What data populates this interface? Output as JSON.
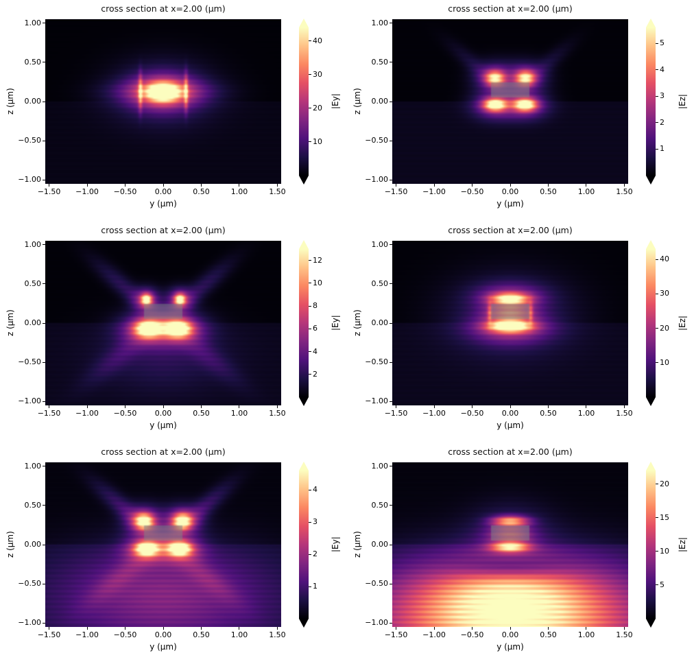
{
  "figure": {
    "background": "#ffffff",
    "colormap": "magma",
    "colormap_stops": [
      [
        0,
        0,
        4
      ],
      [
        28,
        16,
        68
      ],
      [
        79,
        18,
        123
      ],
      [
        129,
        37,
        129
      ],
      [
        181,
        54,
        122
      ],
      [
        229,
        80,
        100
      ],
      [
        251,
        135,
        97
      ],
      [
        254,
        194,
        135
      ],
      [
        252,
        253,
        191
      ]
    ],
    "waveguide_color": [
      125,
      128,
      134
    ],
    "text_color": "#000000"
  },
  "chart_data": [
    {
      "type": "heatmap",
      "title": "cross section at x=2.00 (μm)",
      "xlabel": "y (μm)",
      "ylabel": "z (μm)",
      "cbar_label": "|Ey|",
      "xlim": [
        -1.55,
        1.55
      ],
      "ylim": [
        -1.05,
        1.05
      ],
      "xticks": [
        -1.5,
        -1.0,
        -0.5,
        0.0,
        0.5,
        1.0,
        1.5
      ],
      "yticks": [
        1.0,
        0.5,
        0.0,
        -0.5,
        -1.0
      ],
      "cbar_ticks": [
        10,
        20,
        30,
        40
      ],
      "vmin": 0,
      "vmax": 44,
      "colormap": "magma",
      "base_above": 0.003,
      "base_below": 0.02,
      "fringe": {
        "period": 0.066,
        "depth": 0.16
      },
      "waveguide": {
        "show": false,
        "y": [
          -0.26,
          0.26
        ],
        "z": [
          0.05,
          0.25
        ]
      },
      "features": [
        {
          "y": 0.0,
          "z": 0.12,
          "sy": 0.14,
          "sz": 0.075,
          "a": 1.0
        },
        {
          "y": 0.0,
          "z": 0.12,
          "sy": 0.28,
          "sz": 0.15,
          "a": 0.5
        },
        {
          "y": 0.0,
          "z": 0.11,
          "sy": 0.45,
          "sz": 0.28,
          "a": 0.15
        },
        {
          "y": 0.0,
          "z": 0.12,
          "sy": 0.42,
          "sz": 0.1,
          "a": 0.25
        },
        {
          "y": -0.3,
          "z": 0.12,
          "sy": 0.018,
          "sz": 0.15,
          "a": 0.55
        },
        {
          "y": 0.3,
          "z": 0.12,
          "sy": 0.018,
          "sz": 0.15,
          "a": 0.55
        }
      ]
    },
    {
      "type": "heatmap",
      "title": "cross section at x=2.00 (μm)",
      "xlabel": "y (μm)",
      "ylabel": "z (μm)",
      "cbar_label": "|Ez|",
      "xlim": [
        -1.55,
        1.55
      ],
      "ylim": [
        -1.05,
        1.05
      ],
      "xticks": [
        -1.5,
        -1.0,
        -0.5,
        0.0,
        0.5,
        1.0,
        1.5
      ],
      "yticks": [
        1.0,
        0.5,
        0.0,
        -0.5,
        -1.0
      ],
      "cbar_ticks": [
        1,
        2,
        3,
        4,
        5
      ],
      "vmin": 0,
      "vmax": 5.6,
      "colormap": "magma",
      "base_above": 0.004,
      "base_below": 0.03,
      "fringe": {
        "period": 0.066,
        "depth": 0.16
      },
      "waveguide": {
        "show": true,
        "y": [
          -0.26,
          0.26
        ],
        "z": [
          0.05,
          0.25
        ]
      },
      "features": [
        {
          "y": -0.2,
          "z": 0.3,
          "sy": 0.085,
          "sz": 0.065,
          "a": 0.8
        },
        {
          "y": 0.2,
          "z": 0.3,
          "sy": 0.085,
          "sz": 0.065,
          "a": 0.8
        },
        {
          "y": -0.2,
          "z": 0.3,
          "sy": 0.18,
          "sz": 0.13,
          "a": 0.3
        },
        {
          "y": 0.2,
          "z": 0.3,
          "sy": 0.18,
          "sz": 0.13,
          "a": 0.3
        },
        {
          "y": -0.2,
          "z": -0.04,
          "sy": 0.1,
          "sz": 0.055,
          "a": 1.0
        },
        {
          "y": 0.2,
          "z": -0.04,
          "sy": 0.1,
          "sz": 0.055,
          "a": 1.0
        },
        {
          "y": -0.2,
          "z": -0.05,
          "sy": 0.2,
          "sz": 0.12,
          "a": 0.32
        },
        {
          "y": 0.2,
          "z": -0.05,
          "sy": 0.2,
          "sz": 0.12,
          "a": 0.32
        },
        {
          "y": -0.45,
          "z": 0.45,
          "sy": 0.3,
          "sz": 0.07,
          "rot": -40,
          "a": 0.07
        },
        {
          "y": 0.45,
          "z": 0.45,
          "sy": 0.3,
          "sz": 0.07,
          "rot": 40,
          "a": 0.07
        }
      ]
    },
    {
      "type": "heatmap",
      "title": "cross section at x=2.00 (μm)",
      "xlabel": "y (μm)",
      "ylabel": "z (μm)",
      "cbar_label": "|Ey|",
      "xlim": [
        -1.55,
        1.55
      ],
      "ylim": [
        -1.05,
        1.05
      ],
      "xticks": [
        -1.5,
        -1.0,
        -0.5,
        0.0,
        0.5,
        1.0,
        1.5
      ],
      "yticks": [
        1.0,
        0.5,
        0.0,
        -0.5,
        -1.0
      ],
      "cbar_ticks": [
        2,
        4,
        6,
        8,
        10,
        12
      ],
      "vmin": 0,
      "vmax": 13,
      "colormap": "magma",
      "base_above": 0.004,
      "base_below": 0.03,
      "fringe": {
        "period": 0.066,
        "depth": 0.16
      },
      "waveguide": {
        "show": true,
        "y": [
          -0.26,
          0.26
        ],
        "z": [
          0.05,
          0.25
        ]
      },
      "features": [
        {
          "y": -0.22,
          "z": 0.3,
          "sy": 0.05,
          "sz": 0.05,
          "a": 0.9
        },
        {
          "y": 0.22,
          "z": 0.3,
          "sy": 0.05,
          "sz": 0.05,
          "a": 0.9
        },
        {
          "y": -0.22,
          "z": 0.3,
          "sy": 0.12,
          "sz": 0.1,
          "a": 0.35
        },
        {
          "y": 0.22,
          "z": 0.3,
          "sy": 0.12,
          "sz": 0.1,
          "a": 0.35
        },
        {
          "y": -0.2,
          "z": -0.07,
          "sy": 0.12,
          "sz": 0.075,
          "a": 1.0
        },
        {
          "y": 0.2,
          "z": -0.07,
          "sy": 0.12,
          "sz": 0.075,
          "a": 1.0
        },
        {
          "y": -0.2,
          "z": -0.08,
          "sy": 0.24,
          "sz": 0.14,
          "a": 0.38
        },
        {
          "y": 0.2,
          "z": -0.08,
          "sy": 0.24,
          "sz": 0.14,
          "a": 0.38
        },
        {
          "y": -0.5,
          "z": 0.45,
          "sy": 0.35,
          "sz": 0.08,
          "rot": -40,
          "a": 0.12
        },
        {
          "y": 0.5,
          "z": 0.45,
          "sy": 0.35,
          "sz": 0.08,
          "rot": 40,
          "a": 0.12
        },
        {
          "y": -0.55,
          "z": -0.4,
          "sy": 0.4,
          "sz": 0.1,
          "rot": 38,
          "a": 0.1
        },
        {
          "y": 0.55,
          "z": -0.4,
          "sy": 0.4,
          "sz": 0.1,
          "rot": -38,
          "a": 0.1
        },
        {
          "y": 0.0,
          "z": -0.4,
          "sy": 0.55,
          "sz": 0.3,
          "a": 0.1
        }
      ]
    },
    {
      "type": "heatmap",
      "title": "cross section at x=2.00 (μm)",
      "xlabel": "y (μm)",
      "ylabel": "z (μm)",
      "cbar_label": "|Ez|",
      "xlim": [
        -1.55,
        1.55
      ],
      "ylim": [
        -1.05,
        1.05
      ],
      "xticks": [
        -1.5,
        -1.0,
        -0.5,
        0.0,
        0.5,
        1.0,
        1.5
      ],
      "yticks": [
        1.0,
        0.5,
        0.0,
        -0.5,
        -1.0
      ],
      "cbar_ticks": [
        10,
        20,
        30,
        40
      ],
      "vmin": 0,
      "vmax": 43,
      "colormap": "magma",
      "base_above": 0.004,
      "base_below": 0.03,
      "fringe": {
        "period": 0.066,
        "depth": 0.16
      },
      "waveguide": {
        "show": true,
        "y": [
          -0.26,
          0.26
        ],
        "z": [
          0.05,
          0.25
        ]
      },
      "features": [
        {
          "y": 0.0,
          "z": 0.31,
          "sy": 0.17,
          "sz": 0.05,
          "a": 0.85
        },
        {
          "y": 0.0,
          "z": 0.33,
          "sy": 0.3,
          "sz": 0.12,
          "a": 0.3
        },
        {
          "y": 0.0,
          "z": -0.04,
          "sy": 0.19,
          "sz": 0.05,
          "a": 1.0
        },
        {
          "y": 0.0,
          "z": -0.06,
          "sy": 0.33,
          "sz": 0.13,
          "a": 0.38
        },
        {
          "y": 0.0,
          "z": 0.13,
          "sy": 0.19,
          "sz": 0.08,
          "a": 0.45
        },
        {
          "y": 0.0,
          "z": 0.1,
          "sy": 0.55,
          "sz": 0.35,
          "a": 0.14
        },
        {
          "y": -0.27,
          "z": 0.13,
          "sy": 0.02,
          "sz": 0.1,
          "a": 0.3
        },
        {
          "y": 0.27,
          "z": 0.13,
          "sy": 0.02,
          "sz": 0.1,
          "a": 0.3
        }
      ]
    },
    {
      "type": "heatmap",
      "title": "cross section at x=2.00 (μm)",
      "xlabel": "y (μm)",
      "ylabel": "z (μm)",
      "cbar_label": "|Ey|",
      "xlim": [
        -1.55,
        1.55
      ],
      "ylim": [
        -1.05,
        1.05
      ],
      "xticks": [
        -1.5,
        -1.0,
        -0.5,
        0.0,
        0.5,
        1.0,
        1.5
      ],
      "yticks": [
        1.0,
        0.5,
        0.0,
        -0.5,
        -1.0
      ],
      "cbar_ticks": [
        1,
        2,
        3,
        4
      ],
      "vmin": 0,
      "vmax": 4.6,
      "colormap": "magma",
      "base_above": 0.01,
      "base_below": 0.05,
      "fringe": {
        "period": 0.066,
        "depth": 0.18
      },
      "waveguide": {
        "show": true,
        "y": [
          -0.26,
          0.26
        ],
        "z": [
          0.05,
          0.25
        ]
      },
      "features": [
        {
          "y": -0.25,
          "z": 0.3,
          "sy": 0.085,
          "sz": 0.07,
          "a": 0.9
        },
        {
          "y": 0.25,
          "z": 0.3,
          "sy": 0.085,
          "sz": 0.07,
          "a": 0.9
        },
        {
          "y": -0.25,
          "z": 0.3,
          "sy": 0.17,
          "sz": 0.13,
          "a": 0.35
        },
        {
          "y": 0.25,
          "z": 0.3,
          "sy": 0.17,
          "sz": 0.13,
          "a": 0.35
        },
        {
          "y": -0.22,
          "z": -0.05,
          "sy": 0.1,
          "sz": 0.06,
          "a": 1.0
        },
        {
          "y": 0.22,
          "z": -0.05,
          "sy": 0.1,
          "sz": 0.06,
          "a": 1.0
        },
        {
          "y": -0.22,
          "z": -0.06,
          "sy": 0.2,
          "sz": 0.12,
          "a": 0.4
        },
        {
          "y": 0.22,
          "z": -0.06,
          "sy": 0.2,
          "sz": 0.12,
          "a": 0.4
        },
        {
          "y": -0.5,
          "z": 0.45,
          "sy": 0.35,
          "sz": 0.08,
          "rot": -40,
          "a": 0.15
        },
        {
          "y": 0.5,
          "z": 0.45,
          "sy": 0.35,
          "sz": 0.08,
          "rot": 40,
          "a": 0.15
        },
        {
          "y": -0.55,
          "z": -0.4,
          "sy": 0.4,
          "sz": 0.1,
          "rot": 38,
          "a": 0.13
        },
        {
          "y": 0.55,
          "z": -0.4,
          "sy": 0.4,
          "sz": 0.1,
          "rot": -38,
          "a": 0.13
        },
        {
          "y": 0.0,
          "z": -0.55,
          "sy": 0.85,
          "sz": 0.38,
          "a": 0.22
        },
        {
          "y": 0.0,
          "z": -1.0,
          "sy": 1.2,
          "sz": 0.5,
          "a": 0.12
        }
      ]
    },
    {
      "type": "heatmap",
      "title": "cross section at x=2.00 (μm)",
      "xlabel": "y (μm)",
      "ylabel": "z (μm)",
      "cbar_label": "|Ez|",
      "xlim": [
        -1.55,
        1.55
      ],
      "ylim": [
        -1.05,
        1.05
      ],
      "xticks": [
        -1.5,
        -1.0,
        -0.5,
        0.0,
        0.5,
        1.0,
        1.5
      ],
      "yticks": [
        1.0,
        0.5,
        0.0,
        -0.5,
        -1.0
      ],
      "cbar_ticks": [
        5,
        10,
        15,
        20
      ],
      "vmin": 0,
      "vmax": 22,
      "colormap": "magma",
      "base_above": 0.01,
      "base_below": 0.06,
      "fringe": {
        "period": 0.066,
        "depth": 0.18
      },
      "waveguide": {
        "show": true,
        "y": [
          -0.26,
          0.26
        ],
        "z": [
          0.05,
          0.25
        ]
      },
      "features": [
        {
          "y": 0.0,
          "z": 0.3,
          "sy": 0.16,
          "sz": 0.045,
          "a": 0.75
        },
        {
          "y": 0.0,
          "z": -0.03,
          "sy": 0.17,
          "sz": 0.045,
          "a": 0.8
        },
        {
          "y": 0.0,
          "z": 0.13,
          "sy": 0.18,
          "sz": 0.08,
          "a": 0.4
        },
        {
          "y": 0.0,
          "z": 0.13,
          "sy": 0.35,
          "sz": 0.25,
          "a": 0.15
        },
        {
          "y": 0.0,
          "z": -1.05,
          "sy": 1.15,
          "sz": 0.5,
          "a": 1.0
        },
        {
          "y": 0.0,
          "z": -0.6,
          "sy": 0.8,
          "sz": 0.28,
          "a": 0.4
        },
        {
          "y": 0.0,
          "z": -0.3,
          "sy": 0.5,
          "sz": 0.1,
          "a": -0.3
        }
      ]
    }
  ]
}
